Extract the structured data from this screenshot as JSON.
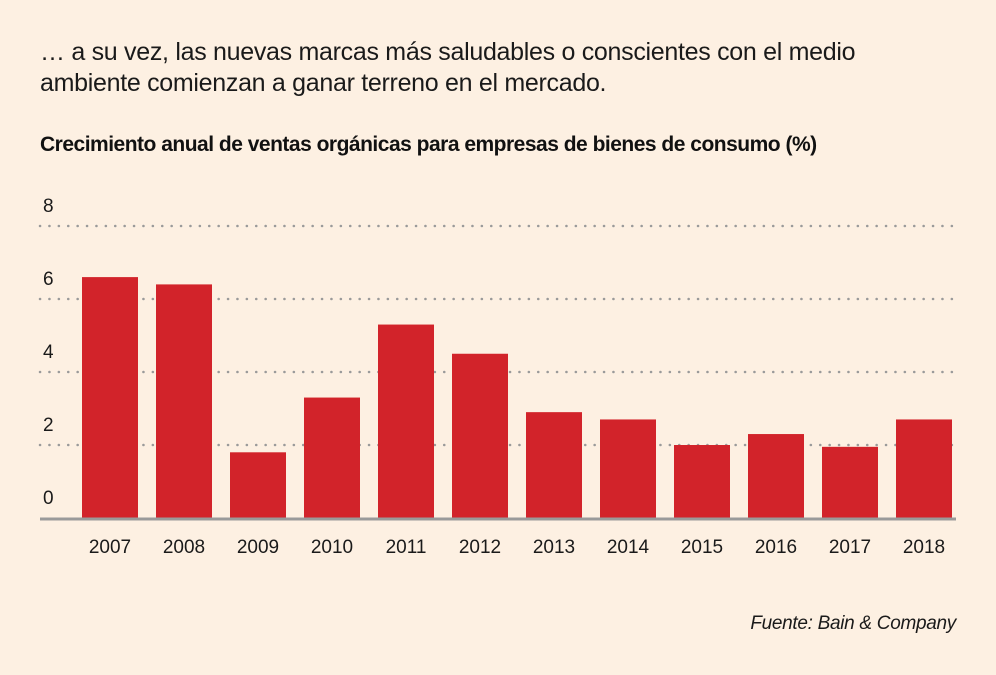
{
  "intro_text": "… a su vez, las nuevas marcas más saludables o conscientes con el medio ambiente comienzan a ganar terreno en el mercado.",
  "source_text": "Fuente: Bain & Company",
  "colors": {
    "bar": "#d2232a",
    "background": "#fdf0e2",
    "grid": "#9a9a9a",
    "axis": "#9a9a9a"
  },
  "chart_data": {
    "type": "bar",
    "title": "Crecimiento anual de ventas orgánicas para empresas de bienes de consumo (%)",
    "xlabel": "",
    "ylabel": "",
    "categories": [
      "2007",
      "2008",
      "2009",
      "2010",
      "2011",
      "2012",
      "2013",
      "2014",
      "2015",
      "2016",
      "2017",
      "2018"
    ],
    "values": [
      6.6,
      6.4,
      1.8,
      3.3,
      5.3,
      4.5,
      2.9,
      2.7,
      2.0,
      2.3,
      1.95,
      2.7
    ],
    "ylim": [
      0,
      8
    ],
    "yticks": [
      0,
      2,
      4,
      6,
      8
    ],
    "grid": true,
    "grid_style": "dotted",
    "legend": "none"
  }
}
